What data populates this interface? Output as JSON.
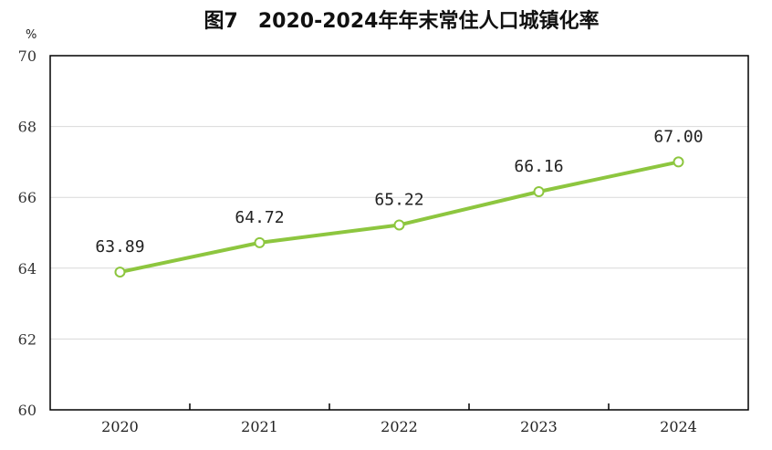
{
  "chart_data": {
    "type": "line",
    "title": "图7　2020-2024年年末常住人口城镇化率",
    "unit": "%",
    "xlabel": "",
    "ylabel": "",
    "ylim": [
      60,
      70
    ],
    "yticks": [
      "60",
      "62",
      "64",
      "66",
      "68",
      "70"
    ],
    "categories": [
      "2020",
      "2021",
      "2022",
      "2023",
      "2024"
    ],
    "values": [
      63.89,
      64.72,
      65.22,
      66.16,
      67.0
    ],
    "data_labels": [
      "63.89",
      "64.72",
      "65.22",
      "66.16",
      "67.00"
    ],
    "grid": true,
    "legend": "none",
    "colors": {
      "line": "#8dc63f",
      "marker_fill": "#ffffff",
      "grid": "#d9d9d9",
      "frame": "#000000"
    }
  }
}
